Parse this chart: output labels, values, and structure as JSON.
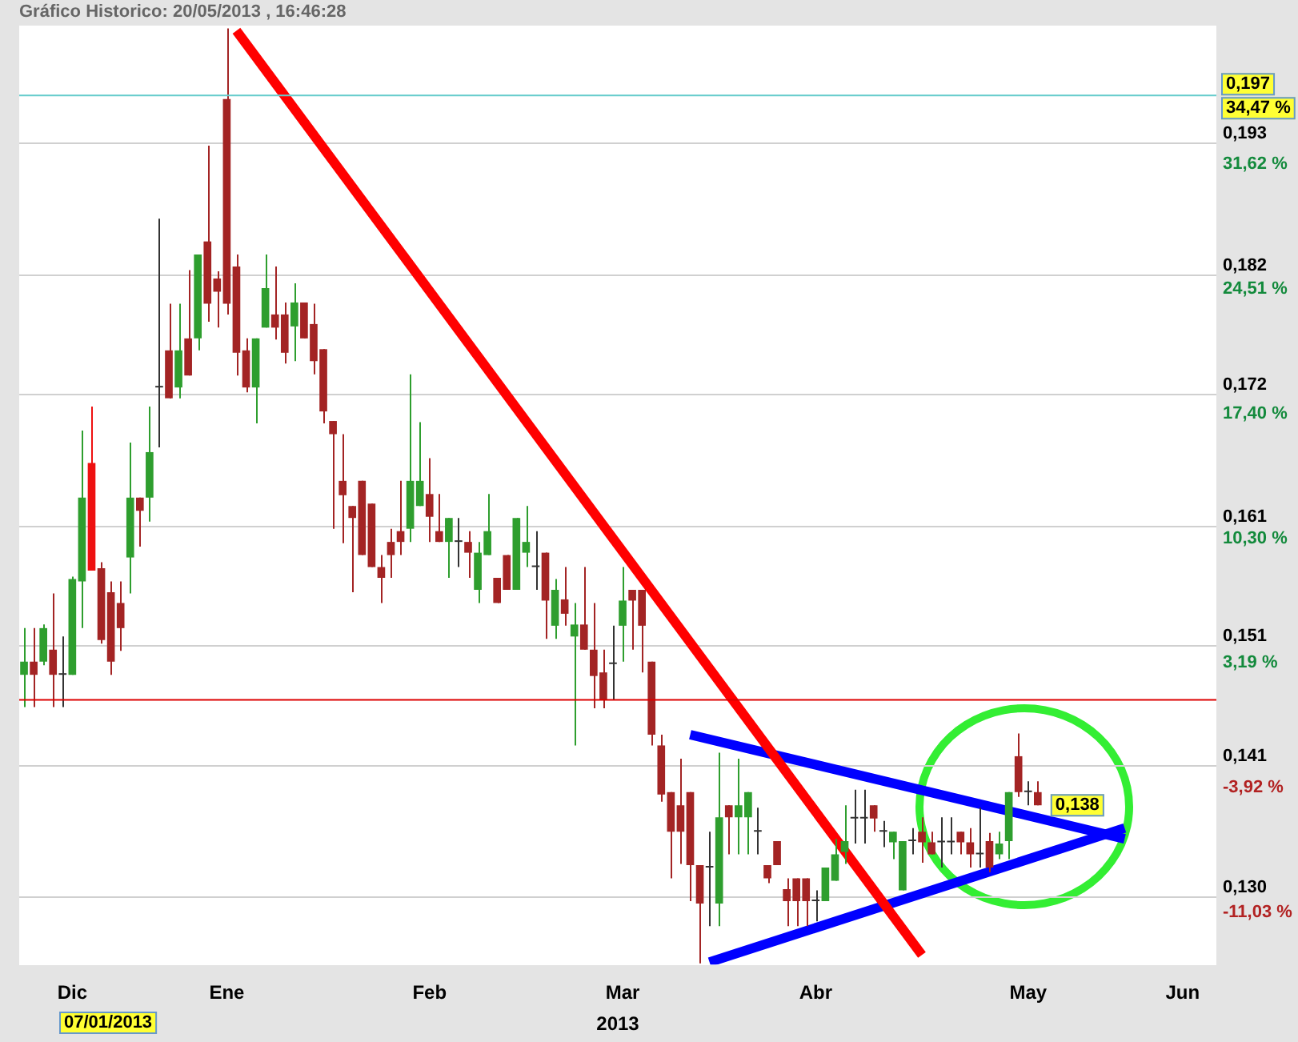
{
  "chart_data": {
    "type": "candlestick",
    "title": "Gráfico Historico: 20/05/2013 , 16:46:28",
    "categories": [
      null,
      null,
      null,
      null,
      null,
      "Dic",
      null,
      null,
      null,
      null,
      null,
      null,
      null,
      null,
      null,
      null,
      null,
      null,
      null,
      null,
      null,
      "Ene",
      null,
      null,
      null,
      null,
      null,
      null,
      null,
      null,
      null,
      null,
      null,
      null,
      null,
      null,
      null,
      null,
      null,
      null,
      null,
      null,
      "Feb",
      null,
      null,
      null,
      null,
      null,
      null,
      null,
      null,
      null,
      null,
      null,
      null,
      null,
      null,
      null,
      null,
      null,
      null,
      null,
      "Mar",
      null,
      null,
      null,
      null,
      null,
      null,
      null,
      null,
      null,
      null,
      null,
      null,
      null,
      null,
      null,
      null,
      null,
      null,
      null,
      "Abr",
      null,
      null,
      null,
      null,
      null,
      null,
      null,
      null,
      null,
      null,
      null,
      null,
      null,
      null,
      null,
      null,
      null,
      null,
      null,
      null,
      null,
      "May",
      null,
      null,
      null,
      null,
      null,
      null,
      null,
      null,
      null,
      null,
      null,
      null,
      null,
      null,
      null,
      "Jun",
      null,
      null,
      null
    ],
    "ohlc": [
      [
        0.1486,
        0.1525,
        0.1459,
        0.1497
      ],
      [
        0.1497,
        0.1525,
        0.1459,
        0.1486
      ],
      [
        0.1497,
        0.1528,
        0.1494,
        0.1525
      ],
      [
        0.1507,
        0.1554,
        0.1459,
        0.1486
      ],
      [
        0.1486,
        0.1518,
        0.1459,
        0.1486
      ],
      [
        0.1486,
        0.1568,
        0.1486,
        0.1566
      ],
      [
        0.1564,
        0.169,
        0.1525,
        0.1634
      ],
      [
        0.1663,
        0.171,
        0.1573,
        0.1573
      ],
      [
        0.1575,
        0.158,
        0.1512,
        0.1515
      ],
      [
        0.1555,
        0.1564,
        0.1486,
        0.1497
      ],
      [
        0.1546,
        0.1564,
        0.1506,
        0.1525
      ],
      [
        0.1584,
        0.168,
        0.1554,
        0.1634
      ],
      [
        0.1634,
        0.1634,
        0.1593,
        0.1623
      ],
      [
        0.1634,
        0.171,
        0.1614,
        0.1672
      ],
      [
        0.1726,
        0.1867,
        0.1676,
        0.1726
      ],
      [
        0.1757,
        0.1796,
        0.1717,
        0.1717
      ],
      [
        0.1726,
        0.1796,
        0.1717,
        0.1757
      ],
      [
        0.1767,
        0.1824,
        0.1736,
        0.1736
      ],
      [
        0.1767,
        0.1837,
        0.1757,
        0.1837
      ],
      [
        0.1848,
        0.1928,
        0.1781,
        0.1796
      ],
      [
        0.1817,
        0.1823,
        0.1776,
        0.1806
      ],
      [
        0.1967,
        0.2026,
        0.1787,
        0.1796
      ],
      [
        0.1827,
        0.1837,
        0.1736,
        0.1755
      ],
      [
        0.1757,
        0.1767,
        0.1722,
        0.1726
      ],
      [
        0.1726,
        0.1767,
        0.1696,
        0.1767
      ],
      [
        0.1776,
        0.1837,
        0.1776,
        0.1809
      ],
      [
        0.1787,
        0.1827,
        0.1766,
        0.1776
      ],
      [
        0.1787,
        0.1797,
        0.1746,
        0.1755
      ],
      [
        0.1777,
        0.1813,
        0.1748,
        0.1797
      ],
      [
        0.1797,
        0.1797,
        0.1767,
        0.1767
      ],
      [
        0.1779,
        0.1796,
        0.1737,
        0.1748
      ],
      [
        0.1758,
        0.1758,
        0.1696,
        0.1706
      ],
      [
        0.1698,
        0.1698,
        0.1608,
        0.1687
      ],
      [
        0.1648,
        0.1687,
        0.1596,
        0.1636
      ],
      [
        0.1627,
        0.1627,
        0.1555,
        0.1617
      ],
      [
        0.1648,
        0.1648,
        0.1586,
        0.1586
      ],
      [
        0.1629,
        0.1629,
        0.1576,
        0.1576
      ],
      [
        0.1576,
        0.1586,
        0.1546,
        0.1567
      ],
      [
        0.1597,
        0.1608,
        0.1567,
        0.1586
      ],
      [
        0.1606,
        0.1648,
        0.1586,
        0.1597
      ],
      [
        0.1608,
        0.1737,
        0.1597,
        0.1648
      ],
      [
        0.1627,
        0.1697,
        0.1627,
        0.1648
      ],
      [
        0.1637,
        0.1667,
        0.1597,
        0.1618
      ],
      [
        0.1606,
        0.1637,
        0.1597,
        0.1597
      ],
      [
        0.1597,
        0.1617,
        0.1567,
        0.1617
      ],
      [
        0.1597,
        0.1617,
        0.1576,
        0.1597
      ],
      [
        0.1597,
        0.1606,
        0.1567,
        0.1588
      ],
      [
        0.1557,
        0.1597,
        0.1546,
        0.1588
      ],
      [
        0.1586,
        0.1637,
        0.1586,
        0.1606
      ],
      [
        0.1567,
        0.1567,
        0.1546,
        0.1546
      ],
      [
        0.1586,
        0.1586,
        0.1557,
        0.1557
      ],
      [
        0.1557,
        0.1617,
        0.1557,
        0.1617
      ],
      [
        0.1588,
        0.1627,
        0.1576,
        0.1597
      ],
      [
        0.1576,
        0.1606,
        0.1557,
        0.1576
      ],
      [
        0.1588,
        0.1588,
        0.1516,
        0.1548
      ],
      [
        0.1527,
        0.1566,
        0.1516,
        0.1557
      ],
      [
        0.1549,
        0.1576,
        0.1527,
        0.1537
      ],
      [
        0.1518,
        0.1546,
        0.1427,
        0.1528
      ],
      [
        0.1528,
        0.1576,
        0.1507,
        0.1507
      ],
      [
        0.1507,
        0.1546,
        0.1458,
        0.1485
      ],
      [
        0.1488,
        0.1507,
        0.1458,
        0.1465
      ],
      [
        0.1495,
        0.1527,
        0.1465,
        0.1495
      ],
      [
        0.1527,
        0.1576,
        0.1497,
        0.1548
      ],
      [
        0.1557,
        0.1557,
        0.1507,
        0.1548
      ],
      [
        0.1557,
        0.1557,
        0.1488,
        0.1527
      ],
      [
        0.1497,
        0.1497,
        0.1427,
        0.1436
      ],
      [
        0.1427,
        0.1436,
        0.138,
        0.1386
      ],
      [
        0.1388,
        0.1388,
        0.1316,
        0.1355
      ],
      [
        0.1377,
        0.1416,
        0.1328,
        0.1355
      ],
      [
        0.1388,
        0.1388,
        0.1297,
        0.1327
      ],
      [
        0.1327,
        0.1327,
        0.1245,
        0.1295
      ],
      [
        0.1325,
        0.1355,
        0.1276,
        0.1325
      ],
      [
        0.1295,
        0.1421,
        0.1276,
        0.1367
      ],
      [
        0.1377,
        0.1377,
        0.1336,
        0.1367
      ],
      [
        0.1367,
        0.1416,
        0.1336,
        0.1377
      ],
      [
        0.1367,
        0.1388,
        0.1336,
        0.1388
      ],
      [
        0.1355,
        0.1375,
        0.1336,
        0.1355
      ],
      [
        0.1327,
        0.1327,
        0.1312,
        0.1316
      ],
      [
        0.1347,
        0.1347,
        0.1327,
        0.1327
      ],
      [
        0.1307,
        0.1316,
        0.1276,
        0.1297
      ],
      [
        0.1316,
        0.1316,
        0.1276,
        0.1297
      ],
      [
        0.1316,
        0.1316,
        0.1276,
        0.1297
      ],
      [
        0.1297,
        0.1306,
        0.128,
        0.1297
      ],
      [
        0.1297,
        0.1325,
        0.1297,
        0.1325
      ],
      [
        0.1314,
        0.1349,
        0.1314,
        0.1336
      ],
      [
        0.1338,
        0.1377,
        0.1328,
        0.1347
      ],
      [
        0.1366,
        0.139,
        0.1345,
        0.1366
      ],
      [
        0.1366,
        0.139,
        0.1345,
        0.1366
      ],
      [
        0.1377,
        0.1377,
        0.1355,
        0.1366
      ],
      [
        0.1355,
        0.1364,
        0.1342,
        0.1355
      ],
      [
        0.1346,
        0.1355,
        0.1332,
        0.1355
      ],
      [
        0.1306,
        0.1347,
        0.1306,
        0.1347
      ],
      [
        0.1347,
        0.1358,
        0.1336,
        0.1347
      ],
      [
        0.1355,
        0.1367,
        0.1329,
        0.1346
      ],
      [
        0.1346,
        0.1355,
        0.1336,
        0.1336
      ],
      [
        0.1346,
        0.1367,
        0.1325,
        0.1346
      ],
      [
        0.1346,
        0.1367,
        0.1336,
        0.1346
      ],
      [
        0.1355,
        0.1355,
        0.1336,
        0.1346
      ],
      [
        0.1346,
        0.1358,
        0.1325,
        0.1336
      ],
      [
        0.1336,
        0.1375,
        0.1325,
        0.1336
      ],
      [
        0.1347,
        0.1354,
        0.1321,
        0.1325
      ],
      [
        0.1336,
        0.1355,
        0.1332,
        0.1345
      ],
      [
        0.1347,
        0.1388,
        0.1332,
        0.1388
      ],
      [
        0.1418,
        0.1437,
        0.1384,
        0.1388
      ],
      [
        0.1388,
        0.1397,
        0.1377,
        0.1388
      ],
      [
        0.1388,
        0.1397,
        0.1377,
        0.1377
      ],
      null,
      null,
      null,
      null,
      null,
      null,
      null,
      null,
      null,
      null,
      null,
      null,
      null,
      null,
      null,
      null,
      null,
      null
    ],
    "colors": [
      "#2e9e2e",
      "#a32424",
      "#2e9e2e",
      "#a32424",
      "#333333",
      "#2e9e2e",
      "#2e9e2e",
      "#ee1111",
      "#a32424",
      "#a32424",
      "#a32424",
      "#2e9e2e",
      "#a32424",
      "#2e9e2e",
      "#333333",
      "#a32424",
      "#2e9e2e",
      "#a32424",
      "#2e9e2e",
      "#a32424",
      "#a32424",
      "#a32424",
      "#a32424",
      "#a32424",
      "#2e9e2e",
      "#2e9e2e",
      "#a32424",
      "#a32424",
      "#2e9e2e",
      "#a32424",
      "#a32424",
      "#a32424",
      "#a32424",
      "#a32424",
      "#a32424",
      "#a32424",
      "#a32424",
      "#a32424",
      "#a32424",
      "#a32424",
      "#2e9e2e",
      "#2e9e2e",
      "#a32424",
      "#a32424",
      "#2e9e2e",
      "#333333",
      "#a32424",
      "#2e9e2e",
      "#2e9e2e",
      "#a32424",
      "#a32424",
      "#2e9e2e",
      "#2e9e2e",
      "#333333",
      "#a32424",
      "#2e9e2e",
      "#a32424",
      "#2e9e2e",
      "#a32424",
      "#a32424",
      "#a32424",
      "#333333",
      "#2e9e2e",
      "#a32424",
      "#a32424",
      "#a32424",
      "#a32424",
      "#a32424",
      "#a32424",
      "#a32424",
      "#a32424",
      "#333333",
      "#2e9e2e",
      "#a32424",
      "#2e9e2e",
      "#2e9e2e",
      "#333333",
      "#a32424",
      "#a32424",
      "#a32424",
      "#a32424",
      "#a32424",
      "#333333",
      "#2e9e2e",
      "#2e9e2e",
      "#2e9e2e",
      "#333333",
      "#333333",
      "#a32424",
      "#333333",
      "#2e9e2e",
      "#2e9e2e",
      "#333333",
      "#a32424",
      "#a32424",
      "#333333",
      "#333333",
      "#a32424",
      "#a32424",
      "#333333",
      "#a32424",
      "#2e9e2e",
      "#2e9e2e",
      "#a32424",
      "#333333",
      "#a32424",
      null,
      null,
      null,
      null,
      null,
      null,
      null,
      null,
      null,
      null,
      null,
      null,
      null,
      null,
      null,
      null,
      null,
      null
    ],
    "series": [
      {
        "type": "line",
        "color": "#ff0000",
        "values": [
          null,
          null,
          null,
          null,
          null,
          null,
          null,
          null,
          null,
          null,
          null,
          null,
          null,
          null,
          null,
          null,
          null,
          null,
          null,
          null,
          null,
          null,
          0.2024,
          null,
          null,
          null,
          null,
          null,
          null,
          null,
          null,
          null,
          null,
          null,
          null,
          null,
          null,
          null,
          null,
          null,
          null,
          null,
          null,
          null,
          null,
          null,
          null,
          null,
          null,
          null,
          null,
          null,
          null,
          null,
          null,
          null,
          null,
          null,
          null,
          null,
          null,
          null,
          null,
          null,
          null,
          null,
          null,
          null,
          null,
          null,
          null,
          null,
          null,
          null,
          null,
          null,
          null,
          null,
          null,
          null,
          null,
          null,
          null,
          null,
          null,
          null,
          null,
          null,
          null,
          null,
          null,
          null,
          null,
          0.1252,
          null,
          null,
          null,
          null,
          null,
          null,
          null,
          null,
          null,
          null,
          null,
          null,
          null,
          null,
          null,
          null,
          null,
          null,
          null,
          null,
          null,
          null,
          null,
          null,
          null,
          null,
          null,
          null,
          null,
          null
        ]
      },
      {
        "type": "line",
        "color": "#0000ff",
        "values": [
          null,
          null,
          null,
          null,
          null,
          null,
          null,
          null,
          null,
          null,
          null,
          null,
          null,
          null,
          null,
          null,
          null,
          null,
          null,
          null,
          null,
          null,
          null,
          null,
          null,
          null,
          null,
          null,
          null,
          null,
          null,
          null,
          null,
          null,
          null,
          null,
          null,
          null,
          null,
          null,
          null,
          null,
          null,
          null,
          null,
          null,
          null,
          null,
          null,
          null,
          null,
          null,
          null,
          null,
          null,
          null,
          null,
          null,
          null,
          null,
          null,
          null,
          null,
          null,
          null,
          null,
          null,
          null,
          null,
          0.1436,
          null,
          null,
          null,
          null,
          null,
          null,
          null,
          null,
          null,
          null,
          null,
          null,
          null,
          null,
          null,
          null,
          null,
          null,
          null,
          null,
          null,
          null,
          null,
          null,
          null,
          null,
          null,
          null,
          null,
          null,
          null,
          null,
          null,
          null,
          null,
          null,
          null,
          null,
          null,
          null,
          null,
          null,
          null,
          null,
          0.1349,
          null,
          null,
          null,
          null,
          null,
          null,
          null,
          null,
          null
        ]
      },
      {
        "type": "line",
        "color": "#0000ff",
        "values": [
          null,
          null,
          null,
          null,
          null,
          null,
          null,
          null,
          null,
          null,
          null,
          null,
          null,
          null,
          null,
          null,
          null,
          null,
          null,
          null,
          null,
          null,
          null,
          null,
          null,
          null,
          null,
          null,
          null,
          null,
          null,
          null,
          null,
          null,
          null,
          null,
          null,
          null,
          null,
          null,
          null,
          null,
          null,
          null,
          null,
          null,
          null,
          null,
          null,
          null,
          null,
          null,
          null,
          null,
          null,
          null,
          null,
          null,
          null,
          null,
          null,
          null,
          null,
          null,
          null,
          null,
          null,
          null,
          null,
          null,
          null,
          0.1246,
          null,
          null,
          null,
          null,
          null,
          null,
          null,
          null,
          null,
          null,
          null,
          null,
          null,
          null,
          null,
          null,
          null,
          null,
          null,
          null,
          null,
          null,
          null,
          null,
          null,
          null,
          null,
          null,
          null,
          null,
          null,
          null,
          null,
          null,
          null,
          null,
          null,
          null,
          null,
          null,
          null,
          null,
          0.1358,
          null,
          null,
          null,
          null,
          null,
          null,
          null,
          null,
          null
        ]
      }
    ],
    "ylim": [
      0.1244,
      0.2028
    ],
    "yticks": [
      {
        "value": 0.13,
        "label": "0,130"
      },
      {
        "value": 0.141,
        "label": "0,141"
      },
      {
        "value": 0.151,
        "label": "0,151"
      },
      {
        "value": 0.161,
        "label": "0,161"
      },
      {
        "value": 0.172,
        "label": "0,172"
      },
      {
        "value": 0.182,
        "label": "0,182"
      },
      {
        "value": 0.193,
        "label": "0,193"
      }
    ],
    "y2lim": [
      -14.01,
      39.51
    ],
    "y2ticks": [
      {
        "value": -11.03,
        "label": "-11,03 %"
      },
      {
        "value": -3.92,
        "label": "-3,92 %"
      },
      {
        "value": 3.19,
        "label": "3,19 %"
      },
      {
        "value": 10.3,
        "label": "10,30 %"
      },
      {
        "value": 17.4,
        "label": "17,40 %"
      },
      {
        "value": 24.51,
        "label": "24,51 %"
      },
      {
        "value": 31.62,
        "label": "31,62 %"
      }
    ],
    "ref_lines": [
      {
        "axis": "y",
        "value": 0.197,
        "label": "0,197",
        "color": "#66cccc"
      },
      {
        "axis": "y",
        "value": 0.1465,
        "color": "#dd0000"
      }
    ],
    "annotations": [
      "07/01/2013",
      "2013",
      "34,47 %",
      "0,138"
    ],
    "grid": "y"
  }
}
